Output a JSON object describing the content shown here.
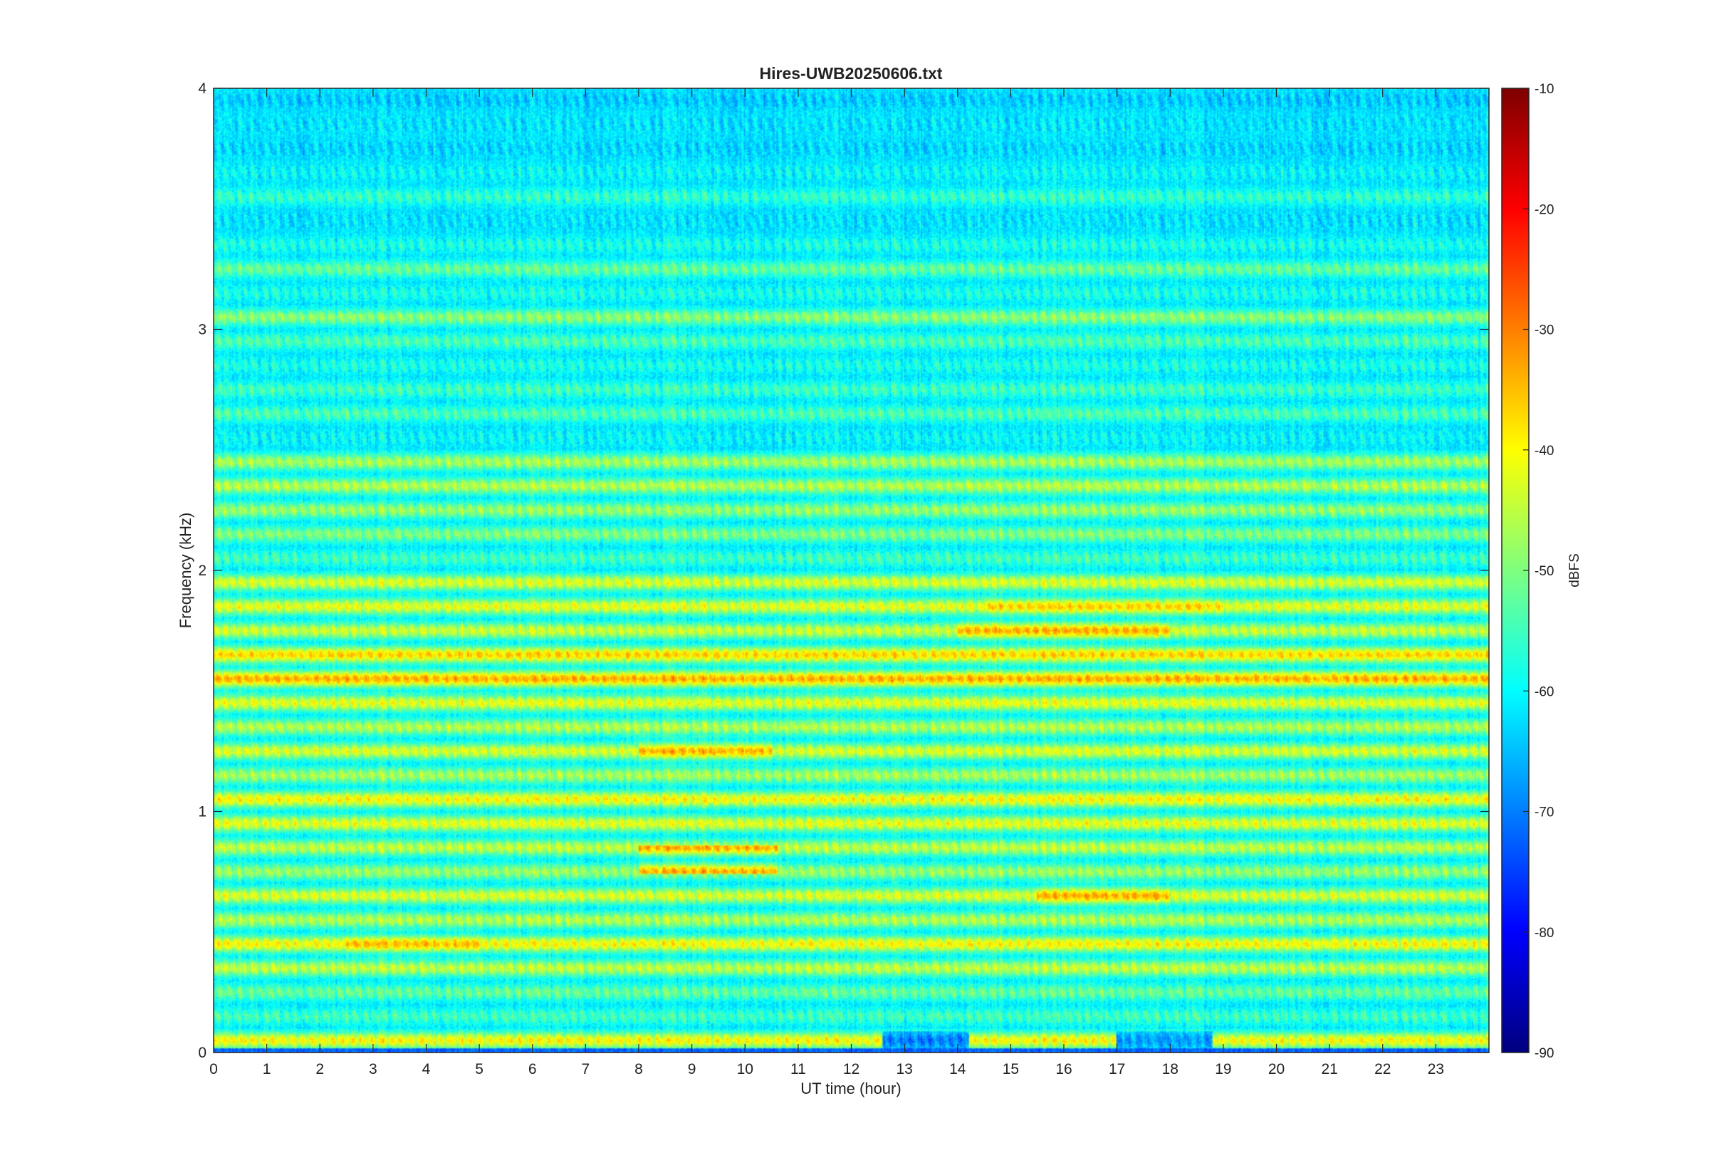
{
  "chart_data": {
    "type": "heatmap",
    "title": "Hires-UWB20250606.txt",
    "xlabel": "UT time (hour)",
    "ylabel": "Frequency (kHz)",
    "xlim": [
      0,
      24
    ],
    "ylim": [
      0,
      4
    ],
    "x_ticks": [
      "0",
      "1",
      "2",
      "3",
      "4",
      "5",
      "6",
      "7",
      "8",
      "9",
      "10",
      "11",
      "12",
      "13",
      "14",
      "15",
      "16",
      "17",
      "18",
      "19",
      "20",
      "21",
      "22",
      "23"
    ],
    "y_ticks": [
      "0",
      "1",
      "2",
      "3",
      "4"
    ],
    "colorbar": {
      "label": "dBFS",
      "range": [
        -90,
        -10
      ],
      "ticks": [
        "-10",
        "-20",
        "-30",
        "-40",
        "-50",
        "-60",
        "-70",
        "-80",
        "-90"
      ],
      "colormap": "jet"
    },
    "background_dbfs": -62,
    "bands": [
      {
        "freq_khz": 0.05,
        "level_dbfs": -40
      },
      {
        "freq_khz": 0.15,
        "level_dbfs": -55
      },
      {
        "freq_khz": 0.25,
        "level_dbfs": -52
      },
      {
        "freq_khz": 0.35,
        "level_dbfs": -45
      },
      {
        "freq_khz": 0.45,
        "level_dbfs": -40
      },
      {
        "freq_khz": 0.55,
        "level_dbfs": -46
      },
      {
        "freq_khz": 0.65,
        "level_dbfs": -43
      },
      {
        "freq_khz": 0.75,
        "level_dbfs": -48
      },
      {
        "freq_khz": 0.85,
        "level_dbfs": -45
      },
      {
        "freq_khz": 0.95,
        "level_dbfs": -42
      },
      {
        "freq_khz": 1.05,
        "level_dbfs": -40
      },
      {
        "freq_khz": 1.15,
        "level_dbfs": -47
      },
      {
        "freq_khz": 1.25,
        "level_dbfs": -43
      },
      {
        "freq_khz": 1.35,
        "level_dbfs": -46
      },
      {
        "freq_khz": 1.45,
        "level_dbfs": -42
      },
      {
        "freq_khz": 1.55,
        "level_dbfs": -39
      },
      {
        "freq_khz": 1.65,
        "level_dbfs": -37
      },
      {
        "freq_khz": 1.75,
        "level_dbfs": -44
      },
      {
        "freq_khz": 1.85,
        "level_dbfs": -42
      },
      {
        "freq_khz": 1.95,
        "level_dbfs": -43
      },
      {
        "freq_khz": 2.05,
        "level_dbfs": -55
      },
      {
        "freq_khz": 2.15,
        "level_dbfs": -50
      },
      {
        "freq_khz": 2.25,
        "level_dbfs": -48
      },
      {
        "freq_khz": 2.35,
        "level_dbfs": -46
      },
      {
        "freq_khz": 2.45,
        "level_dbfs": -47
      },
      {
        "freq_khz": 2.55,
        "level_dbfs": -60
      },
      {
        "freq_khz": 2.65,
        "level_dbfs": -54
      },
      {
        "freq_khz": 2.75,
        "level_dbfs": -55
      },
      {
        "freq_khz": 2.85,
        "level_dbfs": -58
      },
      {
        "freq_khz": 2.95,
        "level_dbfs": -54
      },
      {
        "freq_khz": 3.05,
        "level_dbfs": -49
      },
      {
        "freq_khz": 3.15,
        "level_dbfs": -58
      },
      {
        "freq_khz": 3.25,
        "level_dbfs": -52
      },
      {
        "freq_khz": 3.35,
        "level_dbfs": -58
      },
      {
        "freq_khz": 3.45,
        "level_dbfs": -62
      },
      {
        "freq_khz": 3.55,
        "level_dbfs": -56
      },
      {
        "freq_khz": 3.65,
        "level_dbfs": -60
      },
      {
        "freq_khz": 3.75,
        "level_dbfs": -63
      },
      {
        "freq_khz": 3.85,
        "level_dbfs": -62
      },
      {
        "freq_khz": 3.95,
        "level_dbfs": -64
      }
    ],
    "enhancements": [
      {
        "hours": [
          8,
          10.6
        ],
        "freq_khz": 0.8,
        "level_dbfs": -34
      },
      {
        "hours": [
          15.5,
          18
        ],
        "freq_khz": 0.65,
        "level_dbfs": -34
      },
      {
        "hours": [
          2.5,
          5
        ],
        "freq_khz": 0.45,
        "level_dbfs": -35
      },
      {
        "hours": [
          8,
          10.5
        ],
        "freq_khz": 1.25,
        "level_dbfs": -34
      },
      {
        "hours": [
          14,
          18
        ],
        "freq_khz": 1.75,
        "level_dbfs": -34
      },
      {
        "hours": [
          14.5,
          19
        ],
        "freq_khz": 1.85,
        "level_dbfs": -37
      },
      {
        "hours": [
          0,
          24
        ],
        "freq_khz": 1.55,
        "level_dbfs": -34
      }
    ],
    "dropouts": [
      {
        "hours": [
          12.6,
          14.2
        ],
        "freq_khz": 0.05,
        "level_dbfs": -70
      },
      {
        "hours": [
          17,
          18.8
        ],
        "freq_khz": 0.05,
        "level_dbfs": -68
      }
    ]
  }
}
